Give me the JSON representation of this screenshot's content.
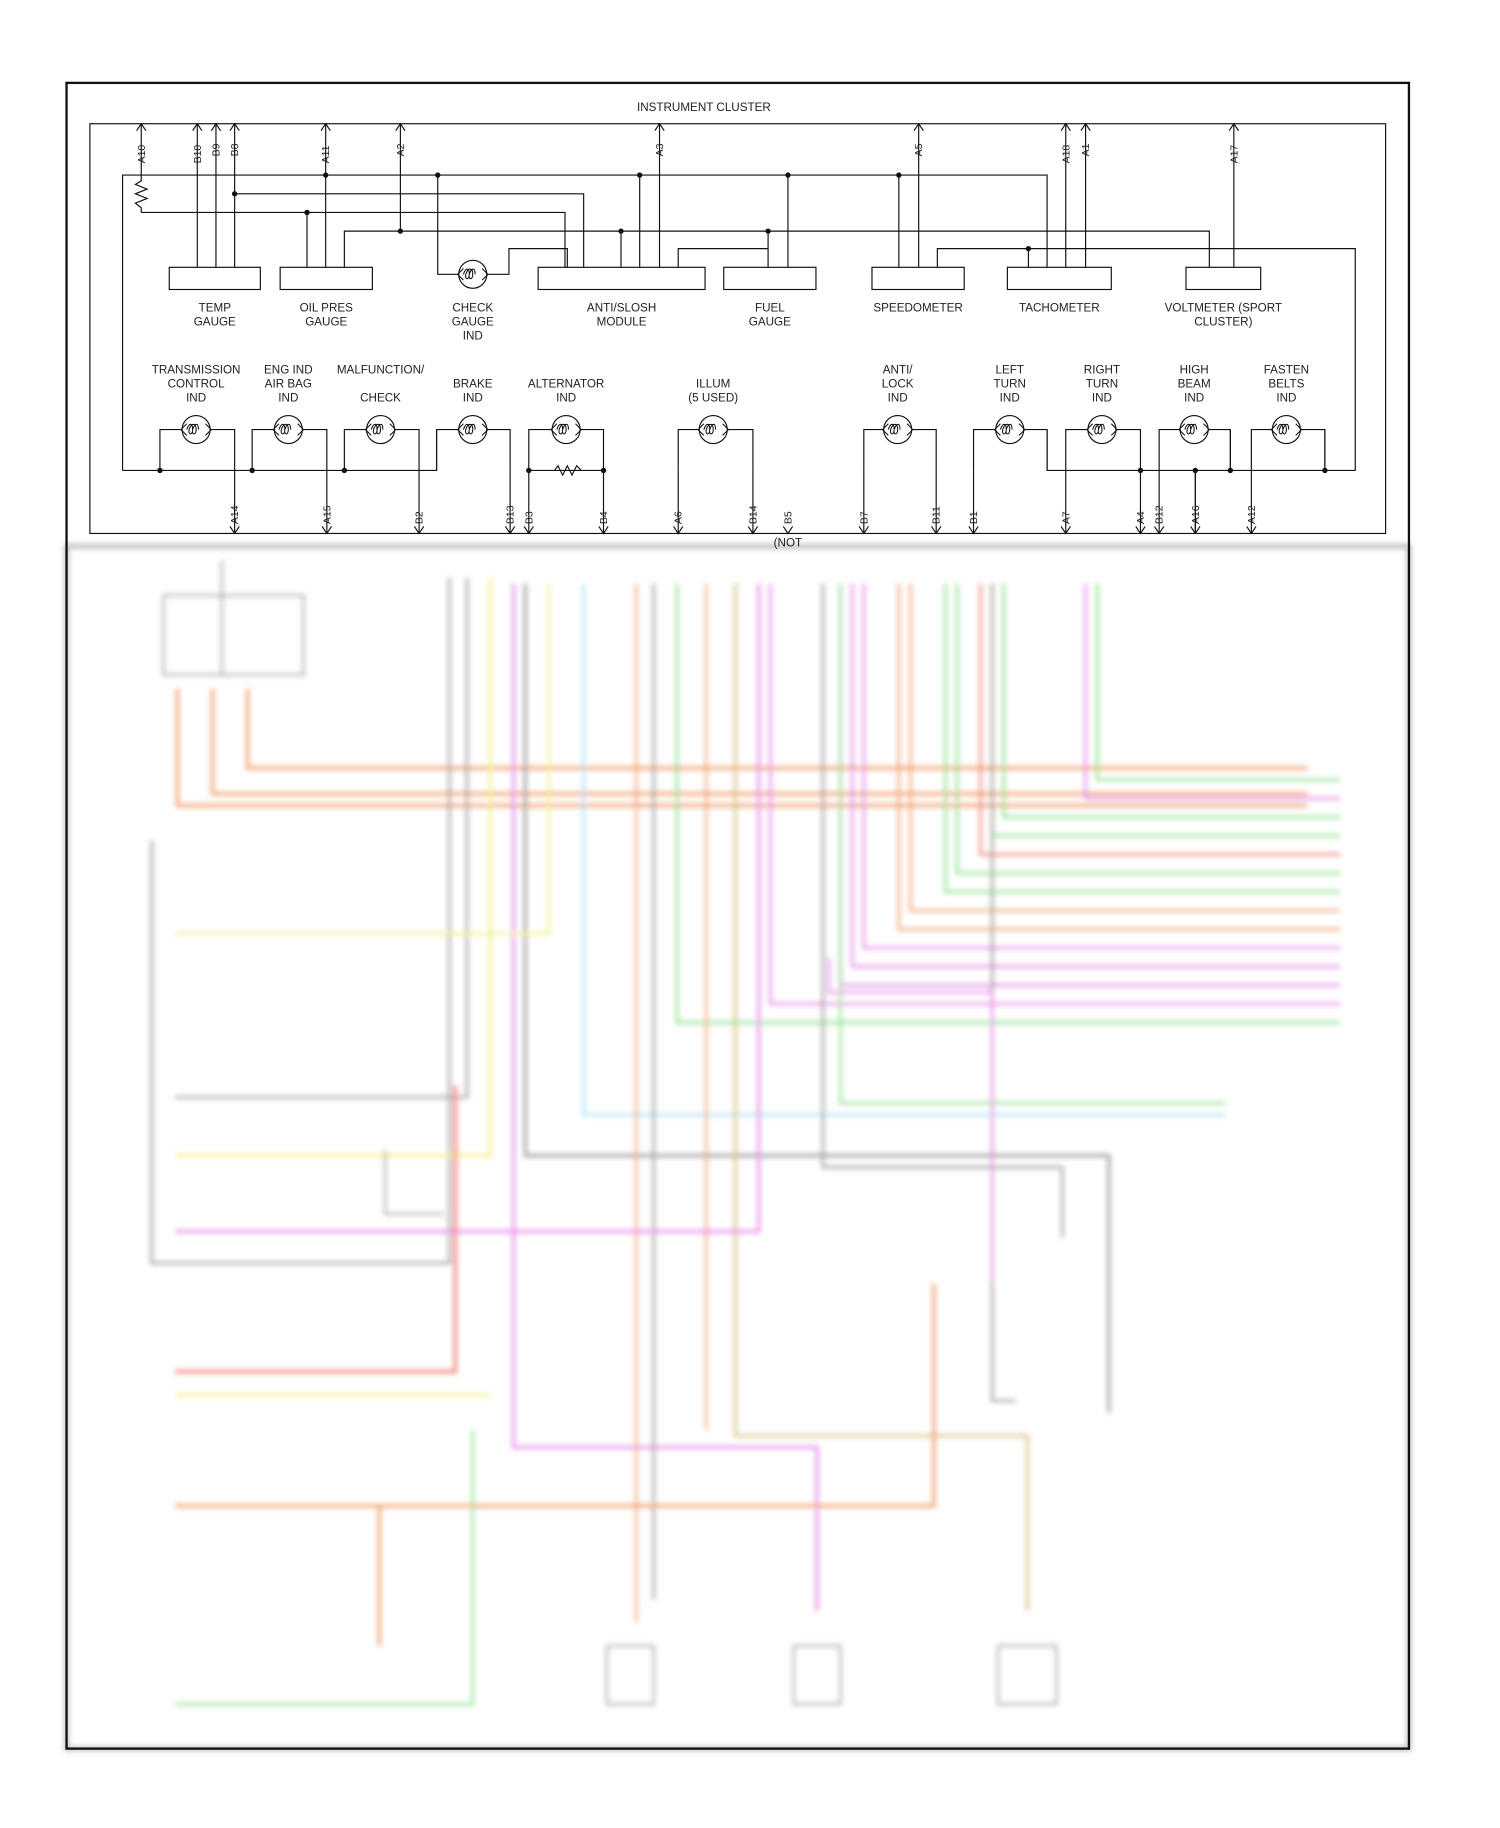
{
  "title": "INSTRUMENT CLUSTER",
  "gauges": [
    {
      "label": [
        "TEMP",
        "GAUGE"
      ]
    },
    {
      "label": [
        "OIL PRES",
        "GAUGE"
      ]
    },
    {
      "label": [
        "CHECK",
        "GAUGE",
        "IND"
      ]
    },
    {
      "label": [
        "ANTI/SLOSH",
        "MODULE"
      ]
    },
    {
      "label": [
        "FUEL",
        "GAUGE"
      ]
    },
    {
      "label": [
        "SPEEDOMETER"
      ]
    },
    {
      "label": [
        "TACHOMETER"
      ]
    },
    {
      "label": [
        "VOLTMETER (SPORT",
        "CLUSTER)"
      ]
    }
  ],
  "lamps": [
    {
      "label": [
        "TRANSMISSION",
        "CONTROL",
        "IND"
      ]
    },
    {
      "label": [
        "ENG IND",
        "AIR BAG",
        "IND"
      ]
    },
    {
      "label": [
        "MALFUNCTION/",
        "",
        "CHECK"
      ]
    },
    {
      "label": [
        "BRAKE",
        "IND"
      ]
    },
    {
      "label": [
        "ALTERNATOR",
        "IND"
      ]
    },
    {
      "label": [
        "ILLUM",
        "(5 USED)"
      ]
    },
    {
      "label": [
        "ANTI/",
        "LOCK",
        "IND"
      ]
    },
    {
      "label": [
        "LEFT",
        "TURN",
        "IND"
      ]
    },
    {
      "label": [
        "RIGHT",
        "TURN",
        "IND"
      ]
    },
    {
      "label": [
        "HIGH",
        "BEAM",
        "IND"
      ]
    },
    {
      "label": [
        "FASTEN",
        "BELTS",
        "IND"
      ]
    }
  ],
  "top_pins": [
    "A10",
    "B10",
    "B9",
    "B8",
    "A11",
    "A2",
    "A3",
    "A5",
    "A18",
    "A1",
    "A17"
  ],
  "bottom_pins": [
    "A14",
    "A15",
    "B2",
    "B13",
    "B3",
    "B4",
    "A6",
    "B14",
    "B5",
    "B7",
    "B11",
    "B1",
    "A7",
    "A4",
    "B12",
    "A16",
    "A12"
  ],
  "not_used_note": "(NOT",
  "wire_colors": {
    "orange": "#f2a77a",
    "pink": "#e58ee8",
    "green": "#8fe08f",
    "yellow": "#f3f08a",
    "red": "#f08a80",
    "gray": "#9a9a9a",
    "blue": "#a6e0f2",
    "tan": "#d8c48a"
  }
}
